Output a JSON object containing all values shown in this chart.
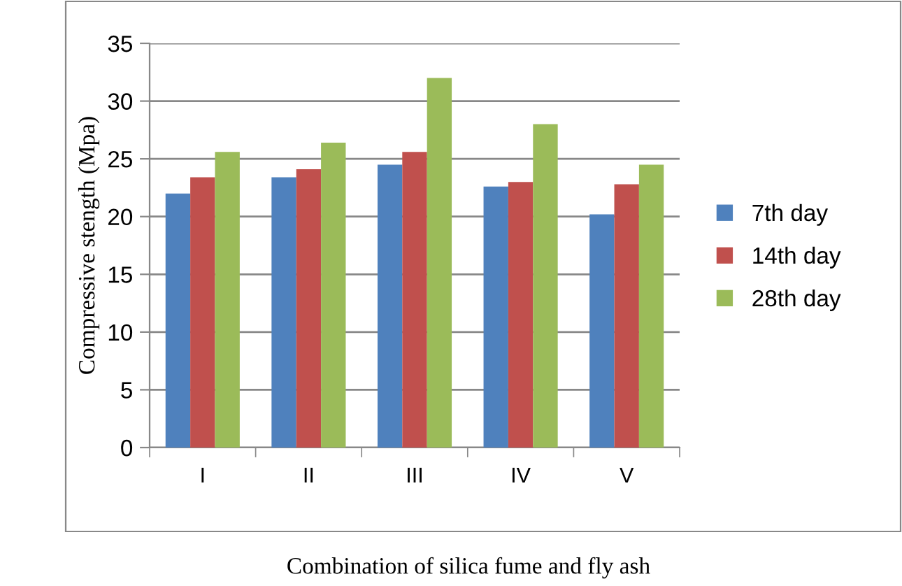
{
  "chart_data": {
    "type": "bar",
    "xlabel": "Combination of silica fume and fly ash",
    "ylabel": "Compressive stength (Mpa)",
    "categories": [
      "I",
      "II",
      "III",
      "IV",
      "V"
    ],
    "series": [
      {
        "name": "7th day",
        "color": "#4f81bd",
        "values": [
          22,
          23.4,
          24.5,
          22.6,
          20.2
        ]
      },
      {
        "name": "14th day",
        "color": "#c0504d",
        "values": [
          23.4,
          24.1,
          25.6,
          23,
          22.8
        ]
      },
      {
        "name": "28th day",
        "color": "#9bbb59",
        "values": [
          25.6,
          26.4,
          32,
          28,
          24.5
        ]
      }
    ],
    "ylim": [
      0,
      35
    ],
    "yticks": [
      0,
      5,
      10,
      15,
      20,
      25,
      30,
      35
    ],
    "grid": "y",
    "legend": "right"
  }
}
